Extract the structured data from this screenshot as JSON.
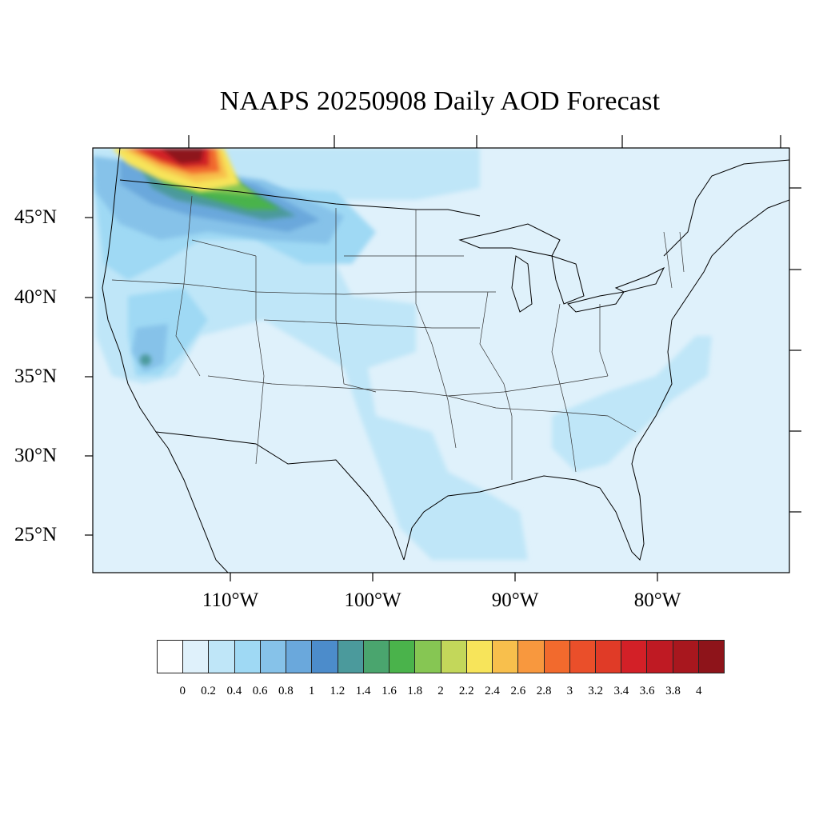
{
  "title": "NAAPS 20250908 Daily AOD Forecast",
  "lat_labels": [
    "45°N",
    "40°N",
    "35°N",
    "30°N",
    "25°N"
  ],
  "lon_labels": [
    "110°W",
    "100°W",
    "90°W",
    "80°W"
  ],
  "colorbar": {
    "labels": [
      "0",
      "0.2",
      "0.4",
      "0.6",
      "0.8",
      "1",
      "1.2",
      "1.4",
      "1.6",
      "1.8",
      "2",
      "2.2",
      "2.4",
      "2.6",
      "2.8",
      "3",
      "3.2",
      "3.4",
      "3.6",
      "3.8",
      "4"
    ],
    "colors": [
      "#ffffff",
      "#dff1fb",
      "#bfe6f8",
      "#9fd9f4",
      "#86c2e9",
      "#6aa8dc",
      "#4c8ccb",
      "#4b9a9c",
      "#4aa56e",
      "#4ab34b",
      "#86c653",
      "#c3d75a",
      "#f7e45a",
      "#f8bf4c",
      "#f8983e",
      "#f26a2d",
      "#ea4f2a",
      "#e03b27",
      "#d32027",
      "#bf1a23",
      "#a8171e",
      "#8e141a"
    ]
  },
  "map_data": {
    "variable": "Daily AOD",
    "region": "Contiguous United States",
    "background_level": "0.2-0.4",
    "features": [
      {
        "area": "Pacific Northwest / Montana border (smoke plume)",
        "max_aod": "4+"
      },
      {
        "area": "Southern California / Nevada",
        "aod": "0.6-1.0"
      },
      {
        "area": "Central Plains",
        "aod": "0.4-0.6"
      },
      {
        "area": "Texas / Gulf Coast",
        "aod": "0.4-0.6"
      },
      {
        "area": "Southeast / Carolinas",
        "aod": "0.4-0.6"
      }
    ]
  }
}
